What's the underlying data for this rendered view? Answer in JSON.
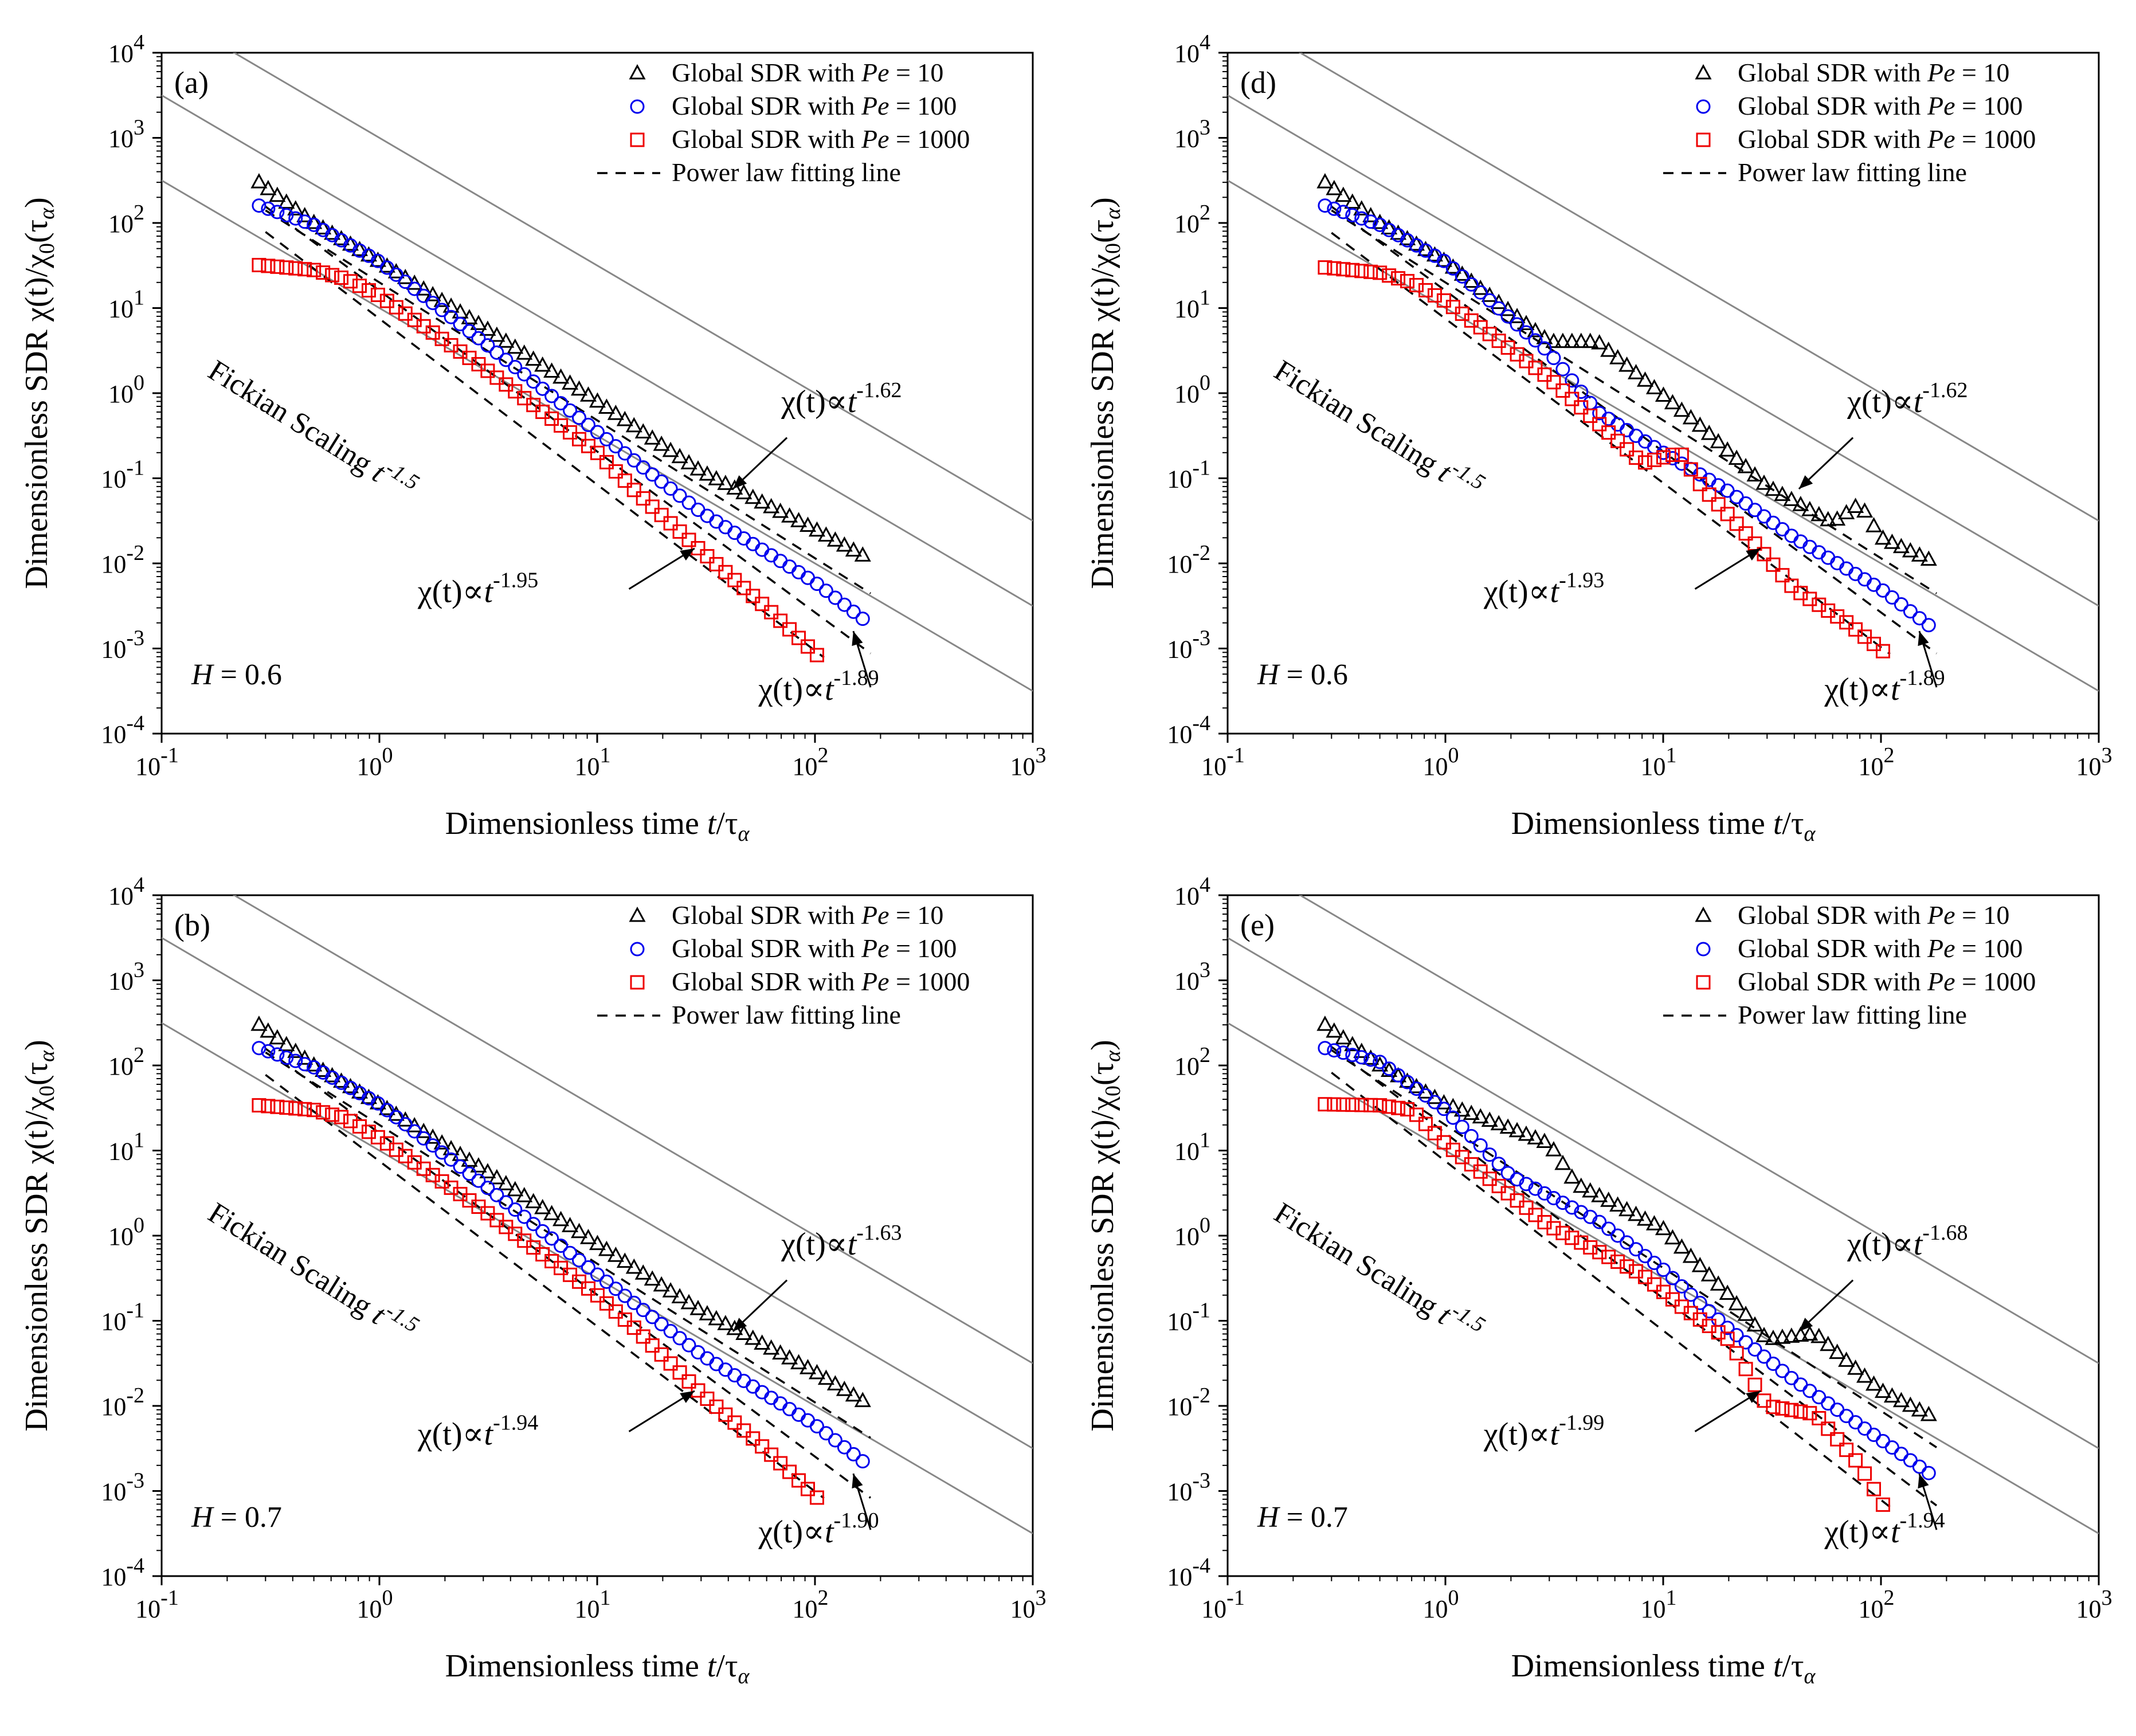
{
  "figure": {
    "x_axis_title": "Dimensionless time",
    "x_axis_var": "t",
    "x_axis_denom": "τ",
    "x_axis_sub": "α",
    "y_axis_title": "Dimensionless SDR χ(t)/χ",
    "y_axis_sub0": "0",
    "y_axis_tail": "(τ",
    "y_axis_sub_alpha": "α",
    "y_axis_close": ")",
    "x_tick_base": "10",
    "x_tick_exponents": [
      "-1",
      "0",
      "1",
      "2",
      "3"
    ],
    "y_tick_base": "10",
    "y_tick_exponents": [
      "-4",
      "-3",
      "-2",
      "-1",
      "0",
      "1",
      "2",
      "3",
      "4"
    ],
    "legend_prefix": "Global SDR with ",
    "legend_pe": "Pe",
    "legend_pe_values": [
      "= 10",
      "= 100",
      "= 1000"
    ],
    "legend_fit": "Power law fitting line",
    "fickian_text": "Fickian Scaling ",
    "fickian_t": "t",
    "fickian_exp": "-1.5",
    "chi_prefix": "χ(t)∝",
    "chi_t": "t",
    "colors": {
      "pe10": "#000000",
      "pe100": "#0000ee",
      "pe1000": "#ee0000",
      "gray": "#888888"
    }
  },
  "chart_data": [
    {
      "type": "scatter",
      "panel": "(a)",
      "H": "H = 0.6",
      "x_scale": "log",
      "y_scale": "log",
      "xlim": [
        0.1,
        1000
      ],
      "ylim": [
        0.0001,
        10000
      ],
      "fickian_lines_intercepts": [
        1000,
        100,
        10
      ],
      "fickian_slope": -1.5,
      "series": [
        {
          "name": "Global SDR with Pe = 10",
          "marker": "triangle",
          "color": "#000000",
          "points": [
            [
              0.28,
              300
            ],
            [
              0.5,
              100
            ],
            [
              1,
              35
            ],
            [
              3,
              6
            ],
            [
              10,
              0.8
            ],
            [
              30,
              0.12
            ],
            [
              100,
              0.025
            ],
            [
              180,
              0.011
            ]
          ]
        },
        {
          "name": "Global SDR with Pe = 100",
          "marker": "circle",
          "color": "#0000ee",
          "points": [
            [
              0.28,
              160
            ],
            [
              0.5,
              95
            ],
            [
              1,
              35
            ],
            [
              3,
              4
            ],
            [
              10,
              0.35
            ],
            [
              30,
              0.04
            ],
            [
              100,
              0.006
            ],
            [
              180,
              0.0019
            ]
          ]
        },
        {
          "name": "Global SDR with Pe = 1000",
          "marker": "square",
          "color": "#ee0000",
          "points": [
            [
              0.28,
              32
            ],
            [
              0.5,
              28
            ],
            [
              0.7,
              22
            ],
            [
              1,
              14
            ],
            [
              3,
              2
            ],
            [
              10,
              0.2
            ],
            [
              15,
              0.07
            ],
            [
              30,
              0.014
            ],
            [
              60,
              0.003
            ],
            [
              110,
              0.0007
            ]
          ]
        }
      ],
      "fits": [
        {
          "exponent": "-1.62",
          "x_range": [
            0.3,
            180
          ],
          "y_at_1": 20
        },
        {
          "exponent": "-1.89",
          "x_range": [
            0.3,
            180
          ],
          "y_at_1": 16
        },
        {
          "exponent": "-1.95",
          "x_range": [
            0.3,
            110
          ],
          "y_at_1": 7.5
        }
      ],
      "annotations": [
        "χ(t)∝t^-1.62",
        "χ(t)∝t^-1.95",
        "χ(t)∝t^-1.89"
      ],
      "legend_entries": [
        "Global SDR with Pe = 10",
        "Global SDR with Pe = 100",
        "Global SDR with Pe = 1000",
        "Power law fitting line"
      ]
    },
    {
      "type": "scatter",
      "panel": "(d)",
      "H": "H = 0.6",
      "x_scale": "log",
      "y_scale": "log",
      "xlim": [
        0.1,
        1000
      ],
      "ylim": [
        0.0001,
        10000
      ],
      "fickian_lines_intercepts": [
        1000,
        100,
        10
      ],
      "fickian_slope": -1.5,
      "series": [
        {
          "name": "Global SDR with Pe = 10",
          "marker": "triangle",
          "color": "#000000",
          "points": [
            [
              0.28,
              300
            ],
            [
              0.5,
              100
            ],
            [
              1,
              35
            ],
            [
              3,
              4
            ],
            [
              5,
              4
            ],
            [
              8,
              1.5
            ],
            [
              15,
              0.4
            ],
            [
              30,
              0.08
            ],
            [
              60,
              0.03
            ],
            [
              80,
              0.05
            ],
            [
              100,
              0.02
            ],
            [
              180,
              0.01
            ]
          ]
        },
        {
          "name": "Global SDR with Pe = 100",
          "marker": "circle",
          "color": "#0000ee",
          "points": [
            [
              0.28,
              160
            ],
            [
              0.5,
              95
            ],
            [
              1,
              35
            ],
            [
              3,
              3
            ],
            [
              5,
              0.6
            ],
            [
              10,
              0.2
            ],
            [
              20,
              0.07
            ],
            [
              40,
              0.02
            ],
            [
              100,
              0.005
            ],
            [
              180,
              0.0016
            ]
          ]
        },
        {
          "name": "Global SDR with Pe = 1000",
          "marker": "square",
          "color": "#ee0000",
          "points": [
            [
              0.28,
              30
            ],
            [
              0.5,
              26
            ],
            [
              0.7,
              20
            ],
            [
              1,
              12
            ],
            [
              3,
              1.5
            ],
            [
              8,
              0.15
            ],
            [
              12,
              0.2
            ],
            [
              15,
              0.08
            ],
            [
              25,
              0.02
            ],
            [
              40,
              0.005
            ],
            [
              70,
              0.002
            ],
            [
              110,
              0.0008
            ]
          ]
        }
      ],
      "fits": [
        {
          "exponent": "-1.62",
          "x_range": [
            0.3,
            180
          ],
          "y_at_1": 20
        },
        {
          "exponent": "-1.89",
          "x_range": [
            0.3,
            180
          ],
          "y_at_1": 16
        },
        {
          "exponent": "-1.93",
          "x_range": [
            0.3,
            110
          ],
          "y_at_1": 7.5
        }
      ],
      "annotations": [
        "χ(t)∝t^-1.62",
        "χ(t)∝t^-1.93",
        "χ(t)∝t^-1.89"
      ],
      "legend_entries": [
        "Global SDR with Pe = 10",
        "Global SDR with Pe = 100",
        "Global SDR with Pe = 1000",
        "Power law fitting line"
      ]
    },
    {
      "type": "scatter",
      "panel": "(b)",
      "H": "H = 0.7",
      "x_scale": "log",
      "y_scale": "log",
      "xlim": [
        0.1,
        1000
      ],
      "ylim": [
        0.0001,
        10000
      ],
      "fickian_lines_intercepts": [
        1000,
        100,
        10
      ],
      "fickian_slope": -1.5,
      "series": [
        {
          "name": "Global SDR with Pe = 10",
          "marker": "triangle",
          "color": "#000000",
          "points": [
            [
              0.28,
              300
            ],
            [
              0.5,
              100
            ],
            [
              1,
              35
            ],
            [
              3,
              6
            ],
            [
              10,
              0.8
            ],
            [
              30,
              0.13
            ],
            [
              100,
              0.025
            ],
            [
              180,
              0.01
            ]
          ]
        },
        {
          "name": "Global SDR with Pe = 100",
          "marker": "circle",
          "color": "#0000ee",
          "points": [
            [
              0.28,
              160
            ],
            [
              0.5,
              95
            ],
            [
              1,
              35
            ],
            [
              3,
              4
            ],
            [
              10,
              0.35
            ],
            [
              30,
              0.04
            ],
            [
              100,
              0.006
            ],
            [
              180,
              0.0019
            ]
          ]
        },
        {
          "name": "Global SDR with Pe = 1000",
          "marker": "square",
          "color": "#ee0000",
          "points": [
            [
              0.28,
              34
            ],
            [
              0.5,
              30
            ],
            [
              0.7,
              24
            ],
            [
              1,
              14
            ],
            [
              3,
              2
            ],
            [
              10,
              0.2
            ],
            [
              15,
              0.08
            ],
            [
              30,
              0.014
            ],
            [
              60,
              0.003
            ],
            [
              110,
              0.0007
            ]
          ]
        }
      ],
      "fits": [
        {
          "exponent": "-1.63",
          "x_range": [
            0.3,
            180
          ],
          "y_at_1": 20
        },
        {
          "exponent": "-1.90",
          "x_range": [
            0.3,
            180
          ],
          "y_at_1": 16
        },
        {
          "exponent": "-1.94",
          "x_range": [
            0.3,
            110
          ],
          "y_at_1": 7.5
        }
      ],
      "annotations": [
        "χ(t)∝t^-1.63",
        "χ(t)∝t^-1.94",
        "χ(t)∝t^-1.90"
      ],
      "legend_entries": [
        "Global SDR with Pe = 10",
        "Global SDR with Pe = 100",
        "Global SDR with Pe = 1000",
        "Power law fitting line"
      ]
    },
    {
      "type": "scatter",
      "panel": "(e)",
      "H": "H = 0.7",
      "x_scale": "log",
      "y_scale": "log",
      "xlim": [
        0.1,
        1000
      ],
      "ylim": [
        0.0001,
        10000
      ],
      "fickian_lines_intercepts": [
        1000,
        100,
        10
      ],
      "fickian_slope": -1.5,
      "series": [
        {
          "name": "Global SDR with Pe = 10",
          "marker": "triangle",
          "color": "#000000",
          "points": [
            [
              0.28,
              300
            ],
            [
              0.5,
              100
            ],
            [
              1,
              35
            ],
            [
              2,
              18
            ],
            [
              3,
              12
            ],
            [
              4,
              4
            ],
            [
              10,
              1.2
            ],
            [
              20,
              0.2
            ],
            [
              30,
              0.06
            ],
            [
              50,
              0.07
            ],
            [
              100,
              0.015
            ],
            [
              180,
              0.007
            ]
          ]
        },
        {
          "name": "Global SDR with Pe = 100",
          "marker": "circle",
          "color": "#0000ee",
          "points": [
            [
              0.28,
              160
            ],
            [
              0.5,
              110
            ],
            [
              1,
              30
            ],
            [
              2,
              5
            ],
            [
              5,
              1.5
            ],
            [
              10,
              0.4
            ],
            [
              20,
              0.08
            ],
            [
              40,
              0.02
            ],
            [
              100,
              0.004
            ],
            [
              180,
              0.0014
            ]
          ]
        },
        {
          "name": "Global SDR with Pe = 1000",
          "marker": "square",
          "color": "#ee0000",
          "points": [
            [
              0.28,
              35
            ],
            [
              0.5,
              34
            ],
            [
              0.7,
              30
            ],
            [
              1,
              12
            ],
            [
              3,
              1.3
            ],
            [
              8,
              0.35
            ],
            [
              12,
              0.15
            ],
            [
              20,
              0.06
            ],
            [
              30,
              0.01
            ],
            [
              50,
              0.008
            ],
            [
              80,
              0.002
            ],
            [
              110,
              0.0005
            ]
          ]
        }
      ],
      "fits": [
        {
          "exponent": "-1.68",
          "x_range": [
            0.3,
            180
          ],
          "y_at_1": 20
        },
        {
          "exponent": "-1.94",
          "x_range": [
            0.3,
            180
          ],
          "y_at_1": 16
        },
        {
          "exponent": "-1.99",
          "x_range": [
            0.3,
            110
          ],
          "y_at_1": 7.5
        }
      ],
      "annotations": [
        "χ(t)∝t^-1.68",
        "χ(t)∝t^-1.99",
        "χ(t)∝t^-1.94"
      ],
      "legend_entries": [
        "Global SDR with Pe = 10",
        "Global SDR with Pe = 100",
        "Global SDR with Pe = 1000",
        "Power law fitting line"
      ]
    }
  ]
}
